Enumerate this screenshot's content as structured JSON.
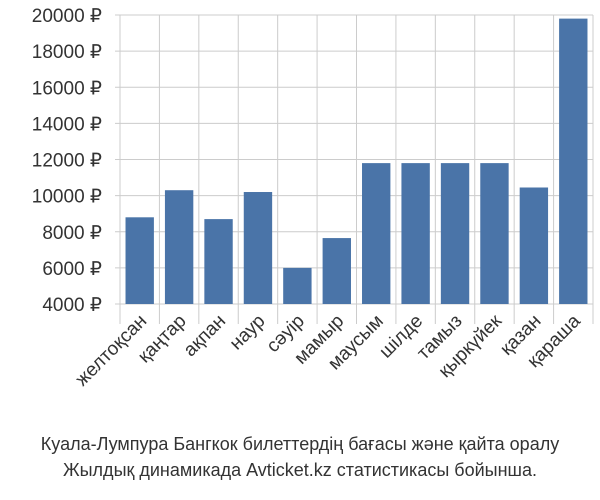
{
  "chart_data": {
    "type": "bar",
    "categories": [
      "желтоқсан",
      "қаңтар",
      "ақпан",
      "наур",
      "сәуір",
      "мамыр",
      "маусым",
      "шілде",
      "тамыз",
      "қыркүйек",
      "қазан",
      "қараша"
    ],
    "values": [
      8800,
      10300,
      8700,
      10200,
      6000,
      7650,
      11800,
      11800,
      11800,
      11800,
      10450,
      19800
    ],
    "ylim": [
      4000,
      20000
    ],
    "yticks": [
      4000,
      6000,
      8000,
      10000,
      12000,
      14000,
      16000,
      18000,
      20000
    ],
    "ytick_suffix": " ₽",
    "bar_color": "#4a74a8",
    "grid": true
  },
  "caption": {
    "line1": "Куала-Лумпура Бангкок билеттердің бағасы және қайта оралу",
    "line2": "Жылдық динамикада Avticket.kz статистикасы бойынша."
  }
}
